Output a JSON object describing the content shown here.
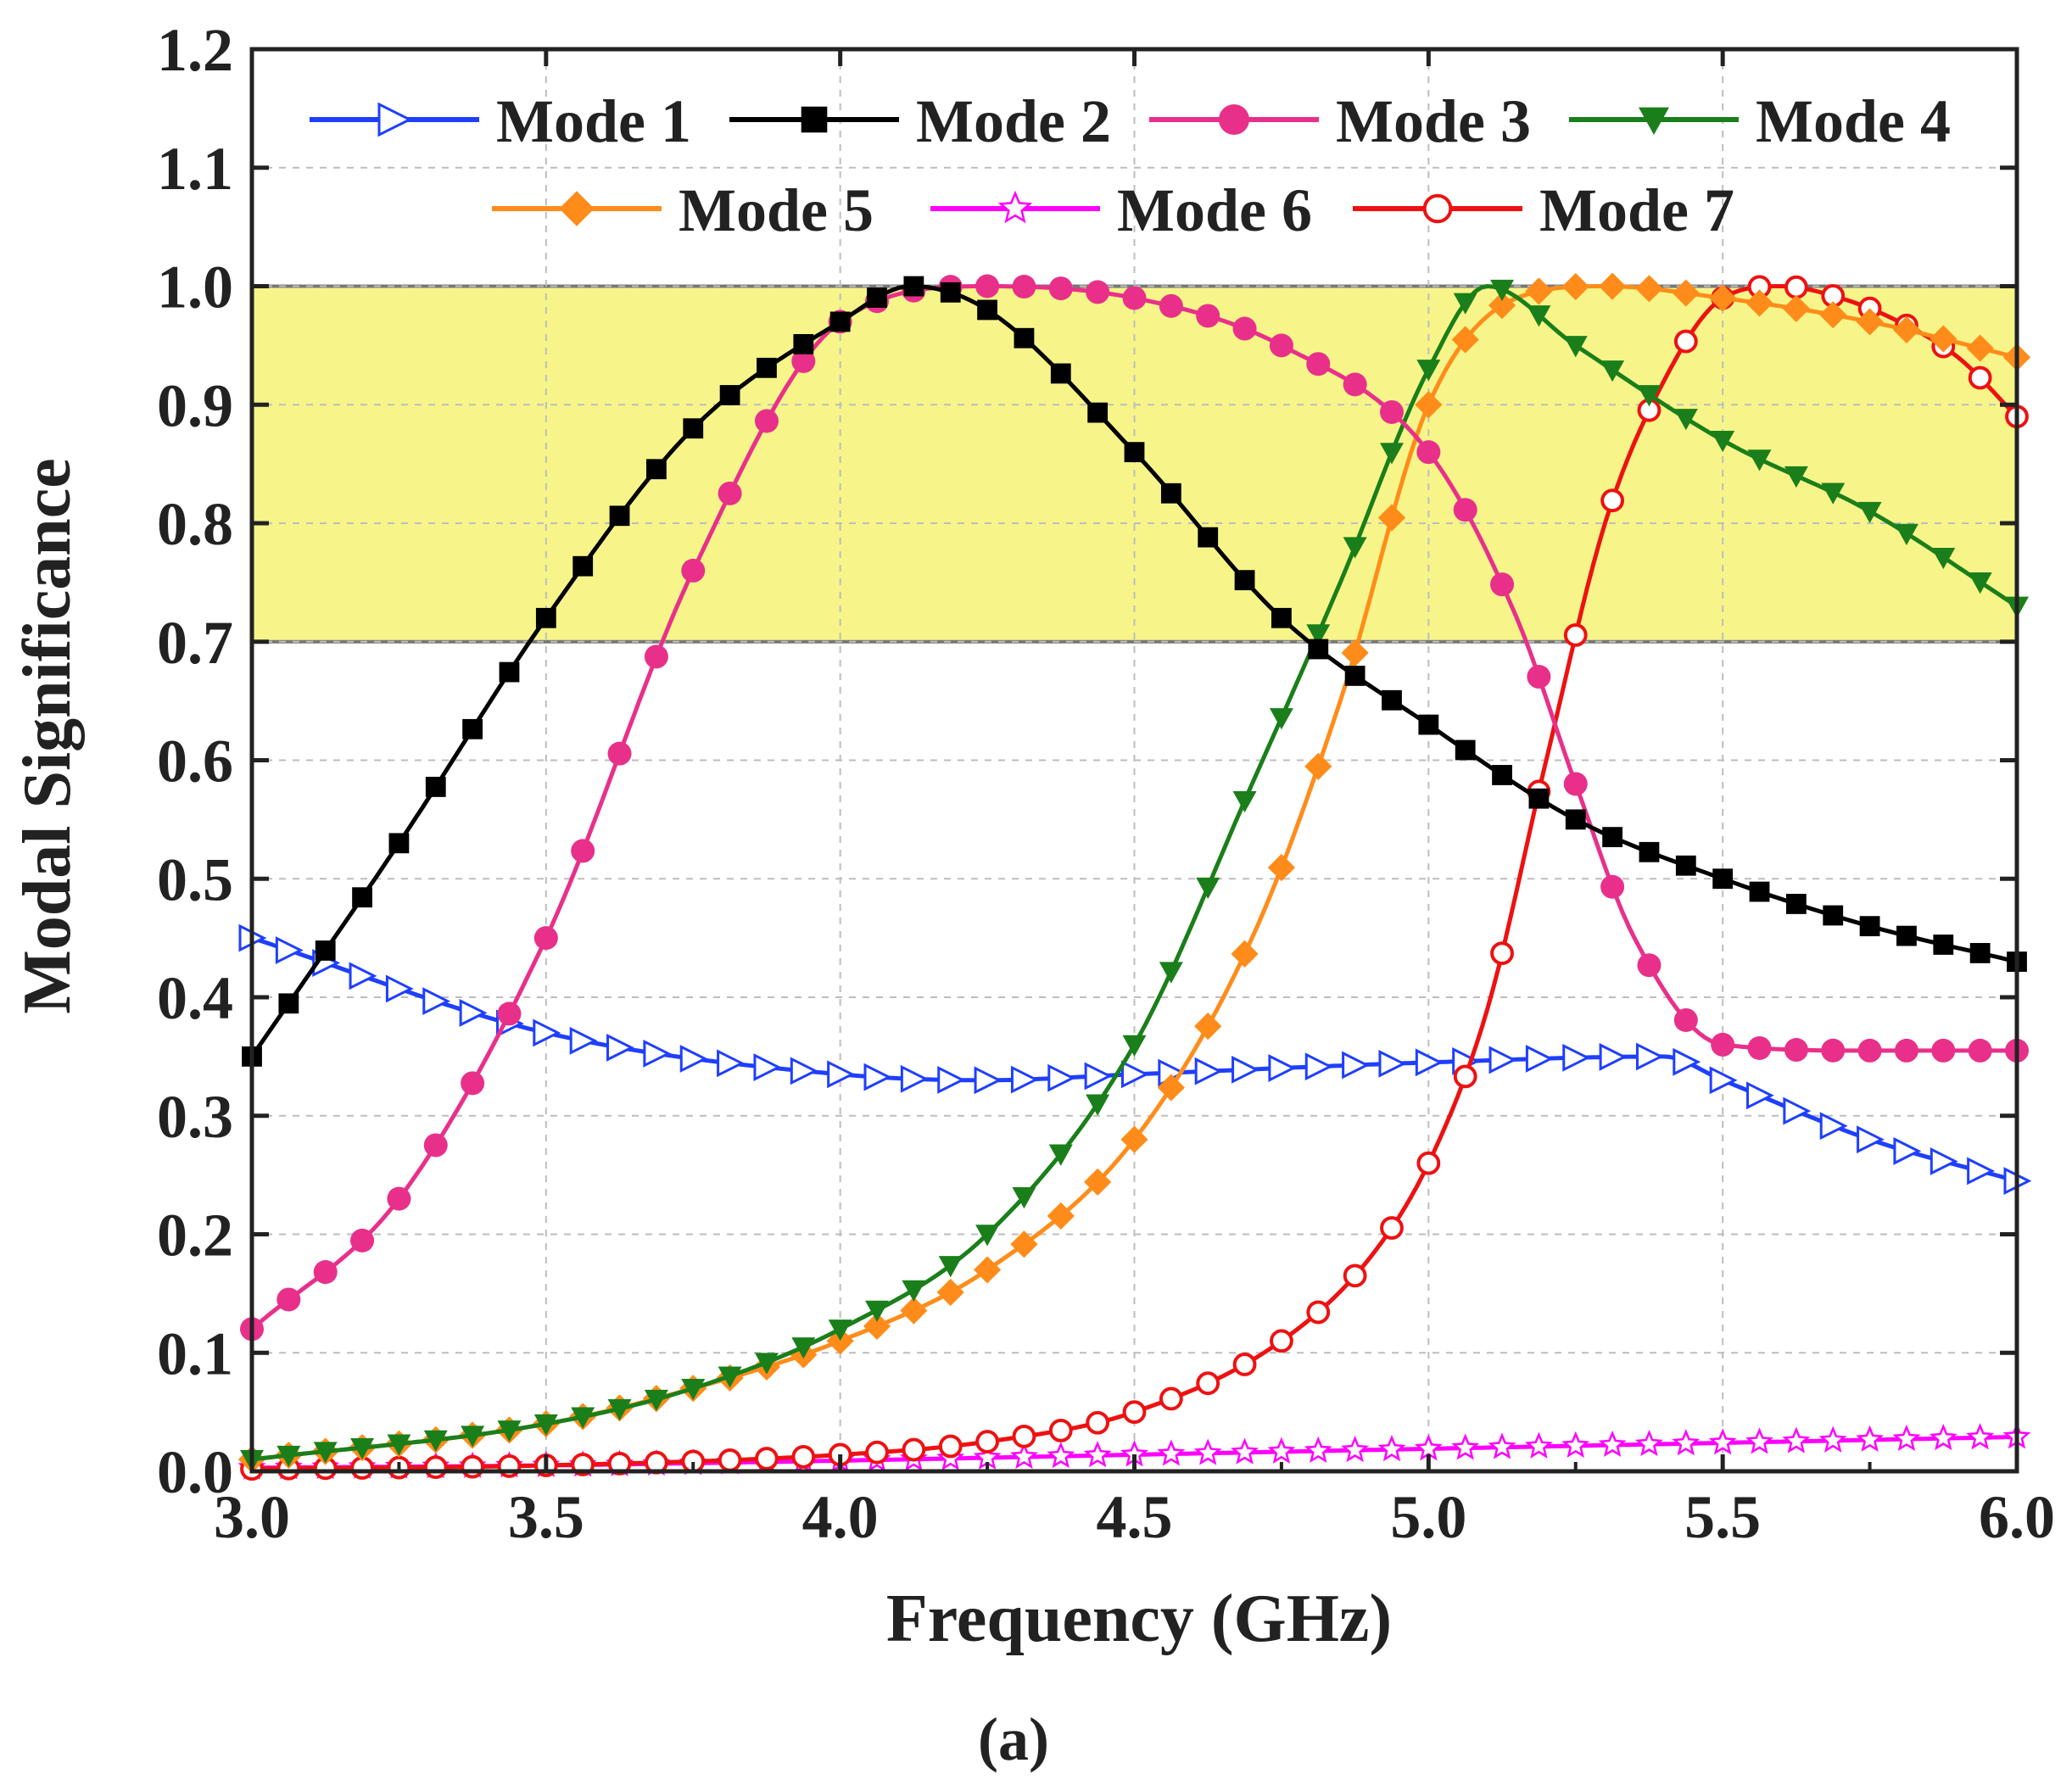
{
  "chart_data": {
    "type": "line",
    "title": "",
    "caption": "(a)",
    "xlabel": "Frequency (GHz)",
    "ylabel": "Modal Significance",
    "xlim": [
      3.0,
      6.0
    ],
    "ylim": [
      0.0,
      1.2
    ],
    "xticks": [
      "3.0",
      "3.5",
      "4.0",
      "4.5",
      "5.0",
      "5.5",
      "6.0"
    ],
    "yticks": [
      "0.0",
      "0.1",
      "0.2",
      "0.3",
      "0.4",
      "0.5",
      "0.6",
      "0.7",
      "0.8",
      "0.9",
      "1.0",
      "1.1",
      "1.2"
    ],
    "grid": true,
    "legend_position": "top",
    "highlight_band": {
      "from": 0.7,
      "to": 1.0,
      "color": "#f7f58a"
    },
    "series": [
      {
        "name": "Mode 1",
        "color": "#1f3fff",
        "marker": "open-triangle-right",
        "x": [
          3.0,
          3.5,
          4.0,
          4.25,
          4.5,
          5.0,
          5.4,
          5.5,
          5.75,
          6.0
        ],
        "y": [
          0.45,
          0.37,
          0.335,
          0.33,
          0.335,
          0.345,
          0.35,
          0.33,
          0.28,
          0.245
        ]
      },
      {
        "name": "Mode 2",
        "color": "#000000",
        "marker": "filled-square",
        "x": [
          3.0,
          3.25,
          3.5,
          3.75,
          4.0,
          4.12,
          4.25,
          4.5,
          4.75,
          5.0,
          5.25,
          5.5,
          5.75,
          6.0
        ],
        "y": [
          0.35,
          0.53,
          0.72,
          0.88,
          0.97,
          1.0,
          0.98,
          0.86,
          0.72,
          0.63,
          0.55,
          0.5,
          0.46,
          0.43
        ]
      },
      {
        "name": "Mode 3",
        "color": "#e8308a",
        "marker": "filled-circle",
        "x": [
          3.0,
          3.25,
          3.5,
          3.75,
          4.0,
          4.25,
          4.5,
          4.75,
          5.0,
          5.15,
          5.25,
          5.35,
          5.5,
          5.75,
          6.0
        ],
        "y": [
          0.12,
          0.23,
          0.45,
          0.76,
          0.97,
          1.0,
          0.99,
          0.95,
          0.86,
          0.72,
          0.58,
          0.45,
          0.36,
          0.355,
          0.355
        ]
      },
      {
        "name": "Mode 4",
        "color": "#1a7f1a",
        "marker": "filled-triangle-down",
        "x": [
          3.0,
          3.5,
          3.75,
          4.0,
          4.25,
          4.5,
          4.7,
          4.85,
          5.0,
          5.1,
          5.25,
          5.5,
          5.75,
          6.0
        ],
        "y": [
          0.01,
          0.04,
          0.07,
          0.12,
          0.2,
          0.36,
          0.58,
          0.75,
          0.93,
          1.0,
          0.95,
          0.87,
          0.81,
          0.73
        ]
      },
      {
        "name": "Mode 5",
        "color": "#ff8c1a",
        "marker": "filled-diamond",
        "x": [
          3.0,
          3.5,
          3.75,
          4.0,
          4.25,
          4.5,
          4.7,
          4.85,
          5.0,
          5.15,
          5.3,
          5.5,
          5.75,
          6.0
        ],
        "y": [
          0.01,
          0.04,
          0.07,
          0.11,
          0.17,
          0.28,
          0.45,
          0.65,
          0.9,
          0.99,
          1.0,
          0.99,
          0.97,
          0.94
        ]
      },
      {
        "name": "Mode 6",
        "color": "#ff00ff",
        "marker": "open-star",
        "x": [
          3.0,
          3.5,
          4.0,
          4.5,
          5.0,
          5.5,
          6.0
        ],
        "y": [
          0.003,
          0.005,
          0.009,
          0.014,
          0.019,
          0.024,
          0.029
        ]
      },
      {
        "name": "Mode 7",
        "color": "#ee1111",
        "marker": "open-circle",
        "x": [
          3.0,
          3.5,
          4.0,
          4.25,
          4.5,
          4.75,
          4.9,
          5.0,
          5.1,
          5.2,
          5.3,
          5.4,
          5.5,
          5.6,
          5.7,
          5.8,
          5.9,
          6.0
        ],
        "y": [
          0.002,
          0.005,
          0.014,
          0.025,
          0.05,
          0.11,
          0.18,
          0.26,
          0.39,
          0.6,
          0.8,
          0.92,
          0.99,
          1.0,
          0.99,
          0.97,
          0.94,
          0.89
        ]
      }
    ]
  }
}
